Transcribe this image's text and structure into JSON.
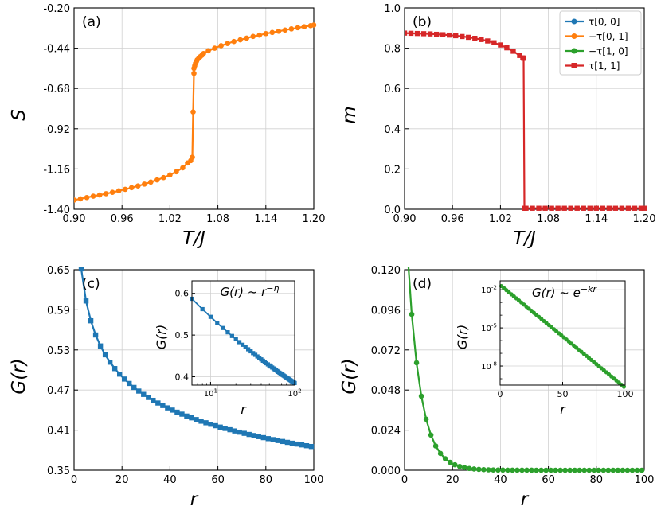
{
  "chart_data": [
    {
      "type": "line",
      "panel_label": "(a)",
      "xlabel": "T/J",
      "ylabel": "S",
      "xlim": [
        0.9,
        1.2
      ],
      "ylim": [
        -1.4,
        -0.2
      ],
      "xticks": [
        "0.90",
        "0.96",
        "1.02",
        "1.08",
        "1.14",
        "1.20"
      ],
      "yticks": [
        "-1.40",
        "-1.16",
        "-0.92",
        "-0.68",
        "-0.44",
        "-0.20"
      ],
      "grid": true,
      "series": [
        {
          "color": "#ff7f0e",
          "marker": "circle",
          "x": [
            0.9,
            0.908,
            0.916,
            0.924,
            0.932,
            0.94,
            0.948,
            0.956,
            0.964,
            0.972,
            0.98,
            0.988,
            0.996,
            1.004,
            1.012,
            1.02,
            1.028,
            1.036,
            1.042,
            1.046,
            1.048,
            1.049,
            1.05,
            1.05,
            1.051,
            1.052,
            1.053,
            1.054,
            1.056,
            1.058,
            1.06,
            1.062,
            1.068,
            1.076,
            1.084,
            1.092,
            1.1,
            1.108,
            1.116,
            1.124,
            1.132,
            1.14,
            1.148,
            1.156,
            1.164,
            1.172,
            1.18,
            1.188,
            1.196,
            1.2
          ],
          "y": [
            -1.345,
            -1.338,
            -1.33,
            -1.322,
            -1.315,
            -1.307,
            -1.299,
            -1.29,
            -1.281,
            -1.271,
            -1.261,
            -1.25,
            -1.238,
            -1.225,
            -1.211,
            -1.195,
            -1.176,
            -1.153,
            -1.124,
            -1.11,
            -1.09,
            -0.82,
            -0.59,
            -0.56,
            -0.545,
            -0.53,
            -0.52,
            -0.51,
            -0.5,
            -0.49,
            -0.482,
            -0.472,
            -0.455,
            -0.44,
            -0.425,
            -0.412,
            -0.4,
            -0.39,
            -0.38,
            -0.37,
            -0.362,
            -0.353,
            -0.346,
            -0.339,
            -0.332,
            -0.325,
            -0.318,
            -0.312,
            -0.306,
            -0.302
          ]
        }
      ]
    },
    {
      "type": "line",
      "panel_label": "(b)",
      "xlabel": "T/J",
      "ylabel": "m",
      "xlim": [
        0.9,
        1.2
      ],
      "ylim": [
        0.0,
        1.0
      ],
      "xticks": [
        "0.90",
        "0.96",
        "1.02",
        "1.08",
        "1.14",
        "1.20"
      ],
      "yticks": [
        "0.0",
        "0.2",
        "0.4",
        "0.6",
        "0.8",
        "1.0"
      ],
      "grid": true,
      "legend": {
        "placement": "top-right",
        "entries": [
          "τ[0, 0]",
          "−τ[0, 1]",
          "−τ[1, 0]",
          "τ[1, 1]"
        ]
      },
      "series": [
        {
          "name": "τ[0, 0]",
          "color": "#1f77b4",
          "marker": "circle"
        },
        {
          "name": "−τ[0, 1]",
          "color": "#ff7f0e",
          "marker": "circle"
        },
        {
          "name": "−τ[1, 0]",
          "color": "#2ca02c",
          "marker": "circle"
        },
        {
          "name": "τ[1, 1]",
          "color": "#d62728",
          "marker": "square",
          "x": [
            0.9,
            0.908,
            0.916,
            0.924,
            0.932,
            0.94,
            0.948,
            0.956,
            0.964,
            0.972,
            0.98,
            0.988,
            0.996,
            1.004,
            1.012,
            1.02,
            1.028,
            1.036,
            1.044,
            1.048,
            1.049,
            1.05,
            1.052,
            1.06,
            1.068,
            1.076,
            1.084,
            1.092,
            1.1,
            1.108,
            1.116,
            1.124,
            1.132,
            1.14,
            1.148,
            1.156,
            1.164,
            1.172,
            1.18,
            1.188,
            1.196,
            1.2
          ],
          "y": [
            0.875,
            0.874,
            0.873,
            0.872,
            0.871,
            0.869,
            0.867,
            0.865,
            0.862,
            0.858,
            0.854,
            0.849,
            0.843,
            0.836,
            0.827,
            0.816,
            0.802,
            0.785,
            0.764,
            0.752,
            0.75,
            0.005,
            0.005,
            0.005,
            0.005,
            0.005,
            0.005,
            0.005,
            0.005,
            0.005,
            0.005,
            0.005,
            0.005,
            0.005,
            0.005,
            0.005,
            0.005,
            0.005,
            0.005,
            0.005,
            0.005,
            0.005
          ]
        }
      ]
    },
    {
      "type": "line",
      "panel_label": "(c)",
      "xlabel": "r",
      "ylabel": "G(r)",
      "xlim": [
        0,
        100
      ],
      "ylim": [
        0.35,
        0.65
      ],
      "xticks": [
        "0",
        "20",
        "40",
        "60",
        "80",
        "100"
      ],
      "yticks": [
        "0.35",
        "0.41",
        "0.47",
        "0.53",
        "0.59",
        "0.65"
      ],
      "grid": true,
      "series": [
        {
          "color": "#1f77b4",
          "marker": "square",
          "law": "power",
          "params": {
            "a": 0.768,
            "eta": 0.15
          },
          "r_start": 1,
          "r_end": 100,
          "r_step": 2
        }
      ],
      "inset": {
        "title": "G(r) ~ r^-η",
        "xlabel": "r",
        "ylabel": "G(r)",
        "xscale": "log",
        "xlim": [
          6,
          100
        ],
        "ylim": [
          0.38,
          0.63
        ],
        "xticks": [
          "10^1",
          "10^2"
        ],
        "yticks": [
          "0.4",
          "0.5",
          "0.6"
        ]
      }
    },
    {
      "type": "line",
      "panel_label": "(d)",
      "xlabel": "r",
      "ylabel": "G(r)",
      "xlim": [
        0,
        100
      ],
      "ylim": [
        0.0,
        0.12
      ],
      "xticks": [
        "0",
        "20",
        "40",
        "60",
        "80",
        "100"
      ],
      "yticks": [
        "0.000",
        "0.024",
        "0.048",
        "0.072",
        "0.096",
        "0.120"
      ],
      "grid": true,
      "series": [
        {
          "color": "#2ca02c",
          "marker": "circle",
          "law": "exponential",
          "params": {
            "a": 0.163,
            "k": 0.186
          },
          "r_start": 1,
          "r_end": 100,
          "r_step": 2
        }
      ],
      "inset": {
        "title": "G(r) ~ e^-kr",
        "xlabel": "r",
        "ylabel": "G(r)",
        "yscale": "log",
        "xlim": [
          0,
          100
        ],
        "ylim_exp": [
          -9.5,
          -1.3
        ],
        "xticks": [
          "0",
          "50",
          "100"
        ],
        "yticks": [
          "10^-2",
          "10^-5",
          "10^-8"
        ]
      }
    }
  ]
}
